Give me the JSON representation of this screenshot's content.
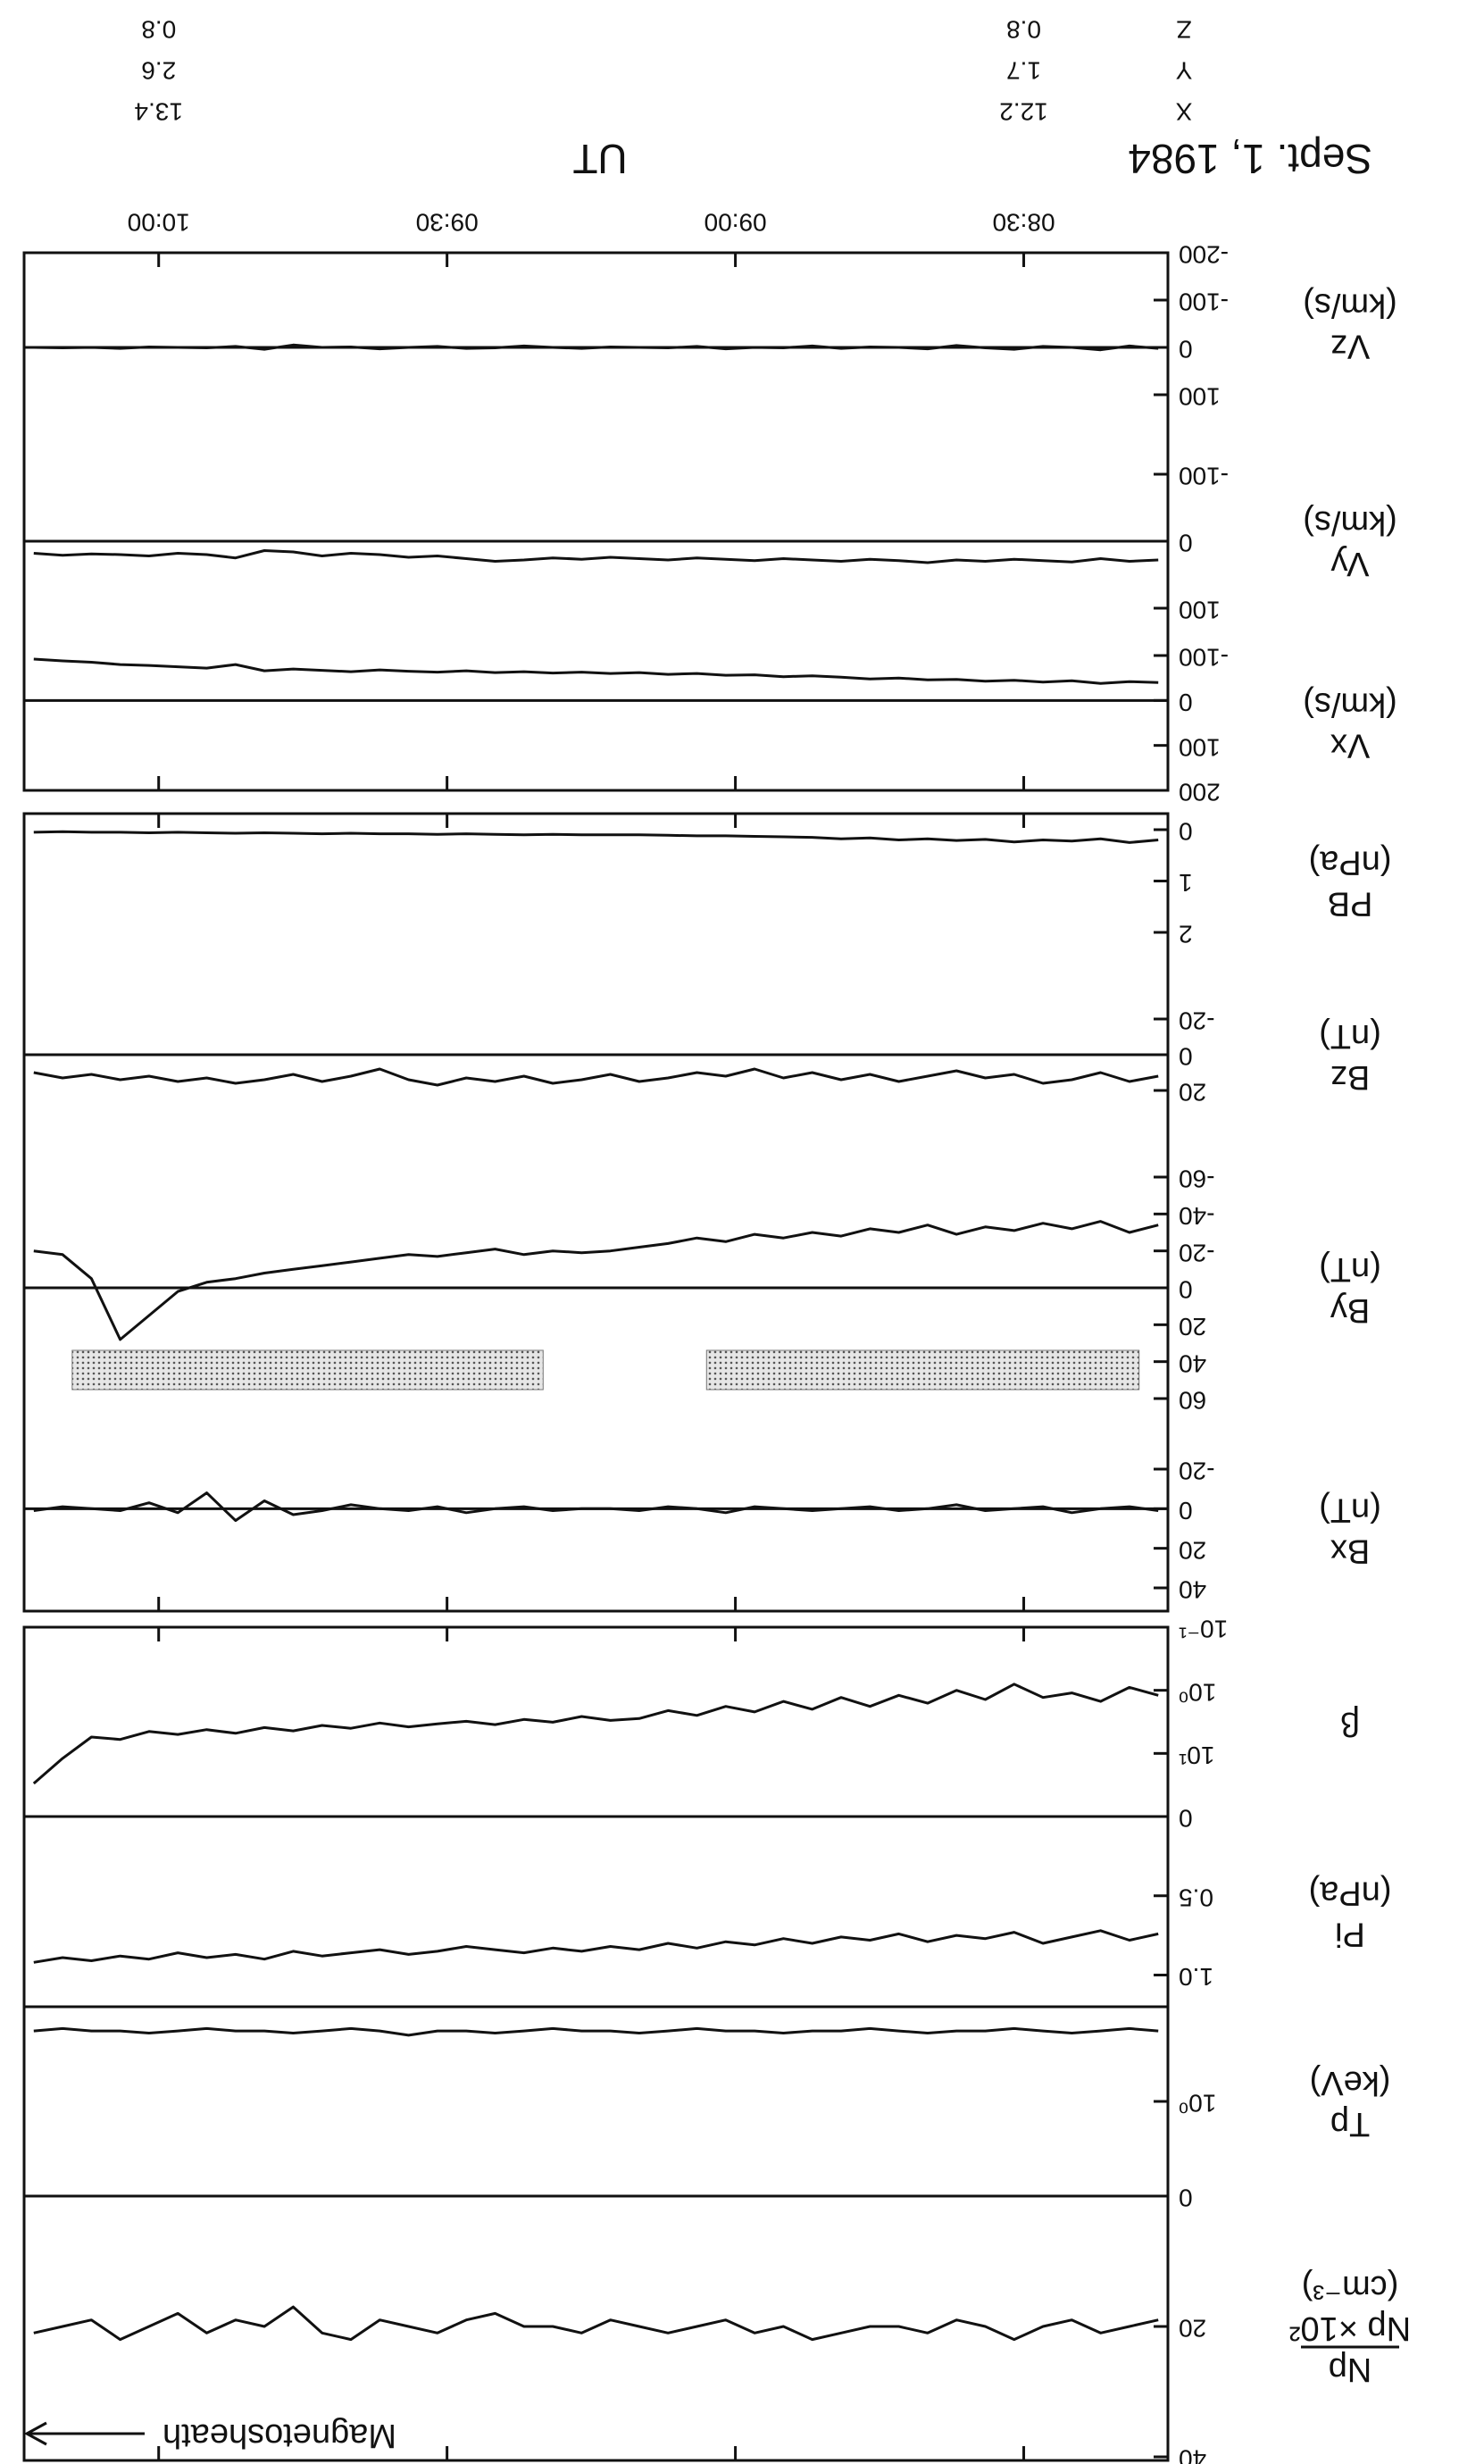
{
  "date": "Sept. 1, 1984",
  "annotation": "Magnetosheath",
  "positions": {
    "x": [
      510,
      600
    ],
    "rows": [
      {
        "name": "X",
        "values": [
          12.2,
          13.4
        ]
      },
      {
        "name": "Y",
        "values": [
          1.7,
          2.6
        ]
      },
      {
        "name": "Z",
        "values": [
          0.8,
          0.8
        ]
      }
    ]
  },
  "chart_data": [
    {
      "type": "line",
      "ylabel": [
        "Np",
        "Np ×10²",
        "(cm⁻³)"
      ],
      "xlim": [
        495,
        614
      ],
      "ylim": [
        0,
        40
      ],
      "yticks": [
        0,
        20,
        40
      ],
      "log": false,
      "zero_line": false,
      "color": "#111",
      "x": [
        496,
        499,
        502,
        505,
        508,
        511,
        514,
        517,
        520,
        523,
        526,
        529,
        532,
        535,
        538,
        541,
        544,
        547,
        550,
        553,
        556,
        559,
        562,
        565,
        568,
        571,
        574,
        577,
        580,
        583,
        586,
        589,
        592,
        595,
        598,
        601,
        604,
        607,
        610,
        613
      ],
      "values": [
        19,
        20,
        21,
        19,
        20,
        22,
        20,
        19,
        21,
        20,
        20,
        21,
        22,
        20,
        21,
        19,
        20,
        21,
        20,
        19,
        21,
        20,
        20,
        18,
        19,
        21,
        20,
        19,
        22,
        21,
        17,
        20,
        19,
        21,
        18,
        20,
        22,
        19,
        20,
        21
      ]
    },
    {
      "type": "line",
      "ylabel": [
        "Tp",
        "(keV)"
      ],
      "xlim": [
        495,
        614
      ],
      "ylim": [
        0.1,
        10
      ],
      "yticks": [
        {
          "value": 1,
          "label": "10⁰"
        }
      ],
      "log": true,
      "zero_line": false,
      "color": "#111",
      "x": [
        496,
        499,
        502,
        505,
        508,
        511,
        514,
        517,
        520,
        523,
        526,
        529,
        532,
        535,
        538,
        541,
        544,
        547,
        550,
        553,
        556,
        559,
        562,
        565,
        568,
        571,
        574,
        577,
        580,
        583,
        586,
        589,
        592,
        595,
        598,
        601,
        604,
        607,
        610,
        613
      ],
      "values": [
        0.18,
        0.17,
        0.18,
        0.19,
        0.18,
        0.17,
        0.18,
        0.18,
        0.19,
        0.18,
        0.17,
        0.18,
        0.18,
        0.19,
        0.18,
        0.18,
        0.17,
        0.18,
        0.19,
        0.18,
        0.18,
        0.17,
        0.18,
        0.19,
        0.18,
        0.18,
        0.2,
        0.18,
        0.17,
        0.18,
        0.19,
        0.18,
        0.18,
        0.17,
        0.18,
        0.19,
        0.18,
        0.18,
        0.17,
        0.18
      ]
    },
    {
      "type": "line",
      "ylabel": [
        "Pi",
        "(nPa)"
      ],
      "xlim": [
        495,
        614
      ],
      "ylim": [
        0,
        1.2
      ],
      "yticks": [
        0,
        0.5,
        {
          "value": 1,
          "label": "1.0"
        }
      ],
      "log": false,
      "zero_line": false,
      "color": "#111",
      "x": [
        496,
        499,
        502,
        505,
        508,
        511,
        514,
        517,
        520,
        523,
        526,
        529,
        532,
        535,
        538,
        541,
        544,
        547,
        550,
        553,
        556,
        559,
        562,
        565,
        568,
        571,
        574,
        577,
        580,
        583,
        586,
        589,
        592,
        595,
        598,
        601,
        604,
        607,
        610,
        613
      ],
      "values": [
        0.74,
        0.78,
        0.72,
        0.76,
        0.8,
        0.73,
        0.77,
        0.75,
        0.79,
        0.74,
        0.78,
        0.76,
        0.8,
        0.77,
        0.81,
        0.79,
        0.83,
        0.8,
        0.84,
        0.82,
        0.85,
        0.83,
        0.86,
        0.84,
        0.82,
        0.85,
        0.87,
        0.84,
        0.86,
        0.88,
        0.85,
        0.9,
        0.87,
        0.89,
        0.86,
        0.9,
        0.88,
        0.91,
        0.89,
        0.92
      ]
    },
    {
      "type": "line",
      "ylabel": [
        "β"
      ],
      "xlim": [
        495,
        614
      ],
      "ylim": [
        0.1,
        100
      ],
      "yticks": [
        {
          "value": 0.1,
          "label": "10⁻¹"
        },
        {
          "value": 1,
          "label": "10⁰"
        },
        {
          "value": 10,
          "label": "10¹"
        }
      ],
      "log": true,
      "zero_line": false,
      "color": "#111",
      "x": [
        496,
        499,
        502,
        505,
        508,
        511,
        514,
        517,
        520,
        523,
        526,
        529,
        532,
        535,
        538,
        541,
        544,
        547,
        550,
        553,
        556,
        559,
        562,
        565,
        568,
        571,
        574,
        577,
        580,
        583,
        586,
        589,
        592,
        595,
        598,
        601,
        604,
        607,
        610,
        613
      ],
      "values": [
        1.2,
        0.9,
        1.5,
        1.1,
        1.3,
        0.8,
        1.4,
        1.0,
        1.6,
        1.2,
        1.8,
        1.3,
        2.0,
        1.5,
        2.2,
        1.8,
        2.5,
        2.1,
        2.8,
        3,
        2.6,
        3.2,
        2.9,
        3.5,
        3.1,
        3.4,
        3.8,
        3.3,
        4,
        3.6,
        4.4,
        3.9,
        4.8,
        4.2,
        5,
        4.5,
        6,
        5.5,
        12,
        30
      ]
    },
    {
      "type": "line",
      "ylabel": [
        "Bx",
        "(nT)"
      ],
      "xlim": [
        495,
        614
      ],
      "ylim": [
        -20,
        40
      ],
      "yticks": [
        -20,
        0,
        20,
        40
      ],
      "log": false,
      "zero_line": true,
      "color": "#111",
      "x": [
        496,
        499,
        502,
        505,
        508,
        511,
        514,
        517,
        520,
        523,
        526,
        529,
        532,
        535,
        538,
        541,
        544,
        547,
        550,
        553,
        556,
        559,
        562,
        565,
        568,
        571,
        574,
        577,
        580,
        583,
        586,
        589,
        592,
        595,
        598,
        601,
        604,
        607,
        610,
        613
      ],
      "values": [
        1,
        -1,
        0,
        2,
        -1,
        0,
        1,
        -2,
        0,
        1,
        -1,
        0,
        1,
        0,
        -1,
        2,
        0,
        -1,
        1,
        0,
        0,
        1,
        -1,
        0,
        2,
        -1,
        1,
        0,
        -2,
        1,
        3,
        -4,
        6,
        -8,
        2,
        -3,
        1,
        0,
        -1,
        1
      ]
    },
    {
      "type": "line",
      "ylabel": [
        "By",
        "(nT)"
      ],
      "xlim": [
        495,
        614
      ],
      "ylim": [
        -60,
        60
      ],
      "yticks": [
        -60,
        -40,
        -20,
        0,
        20,
        40,
        60
      ],
      "log": false,
      "zero_line": true,
      "color": "#111",
      "shaded": [
        [
          498,
          543
        ],
        [
          560,
          609
        ]
      ],
      "x": [
        496,
        499,
        502,
        505,
        508,
        511,
        514,
        517,
        520,
        523,
        526,
        529,
        532,
        535,
        538,
        541,
        544,
        547,
        550,
        553,
        556,
        559,
        562,
        565,
        568,
        571,
        574,
        577,
        580,
        583,
        586,
        589,
        592,
        595,
        598,
        601,
        604,
        607,
        610,
        613
      ],
      "values": [
        -34,
        -30,
        -36,
        -32,
        -35,
        -31,
        -33,
        -29,
        -34,
        -30,
        -32,
        -28,
        -30,
        -27,
        -29,
        -25,
        -27,
        -24,
        -22,
        -20,
        -19,
        -20,
        -18,
        -21,
        -19,
        -17,
        -18,
        -16,
        -14,
        -12,
        -10,
        -8,
        -5,
        -3,
        2,
        15,
        28,
        -5,
        -18,
        -20
      ]
    },
    {
      "type": "line",
      "ylabel": [
        "Bz",
        "(nT)"
      ],
      "xlim": [
        495,
        614
      ],
      "ylim": [
        -20,
        20
      ],
      "yticks": [
        -20,
        0,
        20
      ],
      "log": false,
      "zero_line": true,
      "color": "#111",
      "x": [
        496,
        499,
        502,
        505,
        508,
        511,
        514,
        517,
        520,
        523,
        526,
        529,
        532,
        535,
        538,
        541,
        544,
        547,
        550,
        553,
        556,
        559,
        562,
        565,
        568,
        571,
        574,
        577,
        580,
        583,
        586,
        589,
        592,
        595,
        598,
        601,
        604,
        607,
        610,
        613
      ],
      "values": [
        12,
        15,
        10,
        14,
        16,
        11,
        13,
        9,
        12,
        15,
        11,
        14,
        10,
        13,
        8,
        12,
        10,
        13,
        15,
        11,
        14,
        16,
        12,
        15,
        13,
        17,
        14,
        8,
        12,
        15,
        11,
        14,
        16,
        13,
        15,
        12,
        14,
        11,
        13,
        10
      ]
    },
    {
      "type": "line",
      "ylabel": [
        "PB",
        "(nPa)"
      ],
      "xlim": [
        495,
        614
      ],
      "ylim": [
        0,
        2
      ],
      "yticks": [
        0,
        1,
        2
      ],
      "log": false,
      "zero_line": false,
      "color": "#111",
      "x": [
        496,
        499,
        502,
        505,
        508,
        511,
        514,
        517,
        520,
        523,
        526,
        529,
        532,
        535,
        538,
        541,
        544,
        547,
        550,
        553,
        556,
        559,
        562,
        565,
        568,
        571,
        574,
        577,
        580,
        583,
        586,
        589,
        592,
        595,
        598,
        601,
        604,
        607,
        610,
        613
      ],
      "values": [
        0.2,
        0.25,
        0.18,
        0.22,
        0.2,
        0.24,
        0.19,
        0.21,
        0.18,
        0.2,
        0.16,
        0.18,
        0.15,
        0.14,
        0.13,
        0.12,
        0.12,
        0.11,
        0.1,
        0.1,
        0.1,
        0.09,
        0.1,
        0.09,
        0.08,
        0.09,
        0.08,
        0.08,
        0.07,
        0.08,
        0.07,
        0.06,
        0.07,
        0.06,
        0.05,
        0.06,
        0.05,
        0.05,
        0.04,
        0.05
      ]
    },
    {
      "type": "line",
      "ylabel": [
        "Vx",
        "(km/s)"
      ],
      "xlim": [
        495,
        614
      ],
      "ylim": [
        -100,
        200
      ],
      "yticks": [
        -100,
        0,
        100,
        200
      ],
      "log": false,
      "zero_line": true,
      "color": "#111",
      "x": [
        496,
        499,
        502,
        505,
        508,
        511,
        514,
        517,
        520,
        523,
        526,
        529,
        532,
        535,
        538,
        541,
        544,
        547,
        550,
        553,
        556,
        559,
        562,
        565,
        568,
        571,
        574,
        577,
        580,
        583,
        586,
        589,
        592,
        595,
        598,
        601,
        604,
        607,
        610,
        613
      ],
      "values": [
        -40,
        -42,
        -38,
        -44,
        -41,
        -45,
        -43,
        -47,
        -46,
        -50,
        -48,
        -52,
        -55,
        -53,
        -57,
        -56,
        -60,
        -58,
        -62,
        -60,
        -63,
        -61,
        -64,
        -62,
        -66,
        -63,
        -65,
        -68,
        -64,
        -67,
        -70,
        -66,
        -80,
        -72,
        -75,
        -78,
        -80,
        -85,
        -88,
        -92
      ]
    },
    {
      "type": "line",
      "ylabel": [
        "Vy",
        "(km/s)"
      ],
      "xlim": [
        495,
        614
      ],
      "ylim": [
        -100,
        100
      ],
      "yticks": [
        -100,
        0,
        100
      ],
      "log": false,
      "zero_line": true,
      "color": "#111",
      "x": [
        496,
        499,
        502,
        505,
        508,
        511,
        514,
        517,
        520,
        523,
        526,
        529,
        532,
        535,
        538,
        541,
        544,
        547,
        550,
        553,
        556,
        559,
        562,
        565,
        568,
        571,
        574,
        577,
        580,
        583,
        586,
        589,
        592,
        595,
        598,
        601,
        604,
        607,
        610,
        613
      ],
      "values": [
        28,
        30,
        26,
        31,
        29,
        27,
        30,
        28,
        32,
        29,
        27,
        30,
        28,
        26,
        29,
        27,
        25,
        28,
        26,
        24,
        27,
        25,
        28,
        30,
        26,
        22,
        24,
        20,
        18,
        22,
        16,
        14,
        25,
        20,
        18,
        22,
        20,
        19,
        21,
        18
      ]
    },
    {
      "type": "line",
      "ylabel": [
        "Vz",
        "(km/s)"
      ],
      "xlabel": "UT",
      "xlim": [
        495,
        614
      ],
      "ylim": [
        -200,
        100
      ],
      "yticks": [
        -200,
        -100,
        0,
        100
      ],
      "xticks": [
        {
          "value": 510,
          "label": "08:30"
        },
        {
          "value": 540,
          "label": "09:00"
        },
        {
          "value": 570,
          "label": "09:30"
        },
        {
          "value": 600,
          "label": "10:00"
        }
      ],
      "log": false,
      "zero_line": true,
      "color": "#111",
      "x": [
        496,
        499,
        502,
        505,
        508,
        511,
        514,
        517,
        520,
        523,
        526,
        529,
        532,
        535,
        538,
        541,
        544,
        547,
        550,
        553,
        556,
        559,
        562,
        565,
        568,
        571,
        574,
        577,
        580,
        583,
        586,
        589,
        592,
        595,
        598,
        601,
        604,
        607,
        610,
        613
      ],
      "values": [
        2,
        -3,
        5,
        0,
        -2,
        4,
        1,
        -4,
        3,
        0,
        -1,
        2,
        -3,
        1,
        0,
        3,
        -2,
        1,
        0,
        -1,
        2,
        0,
        -3,
        1,
        2,
        -2,
        0,
        3,
        -1,
        0,
        -5,
        4,
        -2,
        1,
        0,
        -1,
        2,
        0,
        1,
        0
      ]
    }
  ]
}
